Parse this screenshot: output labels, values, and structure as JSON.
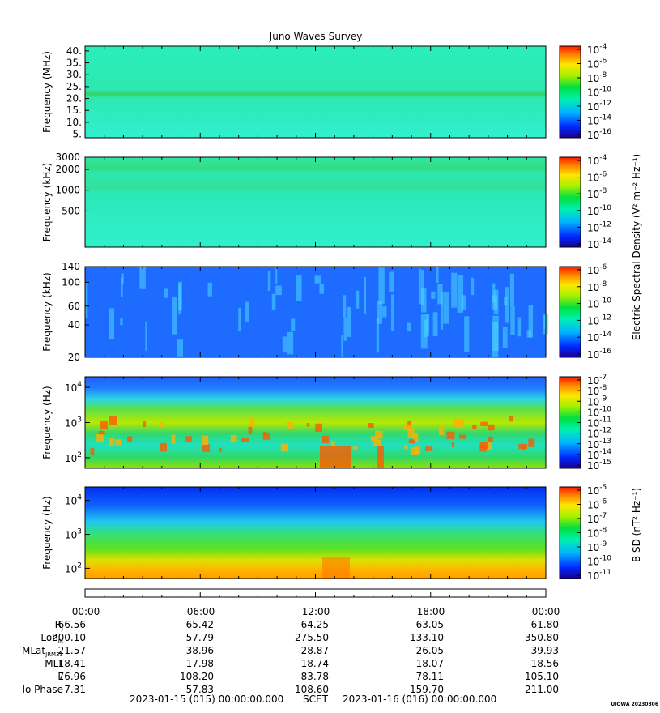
{
  "title": "Juno Waves Survey",
  "colors": {
    "panel_blue": "#1e6cff",
    "panel_cyan": "#28eac8",
    "panel_green": "#2bd46a",
    "panel_yellow": "#ffd000",
    "panel_red": "#ff2a00"
  },
  "chart_data": [
    {
      "type": "heatmap",
      "ylabel": "Frequency (MHz)",
      "yscale": "linear",
      "ylim": [
        3.5,
        42
      ],
      "yticks": [
        "5.",
        "10.",
        "15.",
        "20.",
        "25.",
        "30.",
        "35.",
        "40."
      ],
      "cbar_ticks": [
        "-4",
        "-6",
        "-8",
        "-10",
        "-12",
        "-14",
        "-16"
      ],
      "cbar_label": "",
      "dominant_level": -12.5,
      "features": [
        {
          "freq": 21.5,
          "level": -11.5,
          "desc_band": true
        }
      ]
    },
    {
      "type": "heatmap",
      "ylabel": "Frequency (kHz)",
      "yscale": "log",
      "ylim": [
        150,
        3000
      ],
      "yticks": [
        "3000",
        "2000",
        "1000",
        "500"
      ],
      "cbar_ticks": [
        "-4",
        "-6",
        "-8",
        "-10",
        "-12",
        "-14"
      ],
      "cbar_label": "Electric Spectral Density (V² m⁻² Hz⁻¹)",
      "dominant_level": -12.5,
      "features": [
        {
          "freq": 2000,
          "level": -11.5
        },
        {
          "freq": 1000,
          "level": -11.8
        }
      ]
    },
    {
      "type": "heatmap",
      "ylabel": "Frequency (kHz)",
      "yscale": "log",
      "ylim": [
        20,
        140
      ],
      "yticks": [
        "140",
        "100",
        "60",
        "40",
        "20"
      ],
      "cbar_ticks": [
        "-6",
        "-8",
        "-10",
        "-12",
        "-14",
        "-16"
      ],
      "cbar_label": "",
      "dominant_level": -14.5
    },
    {
      "type": "heatmap",
      "ylabel": "Frequency (Hz)",
      "yscale": "log",
      "ylim": [
        50,
        20000
      ],
      "yticks": [
        "4",
        "3",
        "2"
      ],
      "cbar_ticks": [
        "-7",
        "-8",
        "-9",
        "-10",
        "-11",
        "-12",
        "-13",
        "-14",
        "-15"
      ],
      "cbar_label": "",
      "dominant_level": -11
    },
    {
      "type": "heatmap",
      "ylabel": "Frequency (Hz)",
      "yscale": "log",
      "ylim": [
        50,
        25000
      ],
      "yticks": [
        "4",
        "3",
        "2"
      ],
      "cbar_ticks": [
        "-5",
        "-6",
        "-7",
        "-8",
        "-9",
        "-10",
        "-11"
      ],
      "cbar_label": "B SD (nT² Hz⁻¹)",
      "dominant_level": -8
    }
  ],
  "x_axis": {
    "times": [
      "00:00",
      "06:00",
      "12:00",
      "18:00",
      "00:00"
    ]
  },
  "ephemeris": {
    "labels": [
      "RJ",
      "LonIII",
      "MLatJRM33",
      "MLT",
      "L",
      "Io Phase"
    ],
    "rows": [
      [
        "66.56",
        "65.42",
        "64.25",
        "63.05",
        "61.80"
      ],
      [
        "200.10",
        "57.79",
        "275.50",
        "133.10",
        "350.80"
      ],
      [
        "-21.57",
        "-38.96",
        "-28.87",
        "-26.05",
        "-39.93"
      ],
      [
        "18.41",
        "17.98",
        "18.74",
        "18.07",
        "18.56"
      ],
      [
        "76.96",
        "108.20",
        "83.78",
        "78.11",
        "105.10"
      ],
      [
        "7.31",
        "57.83",
        "108.60",
        "159.70",
        "211.00"
      ]
    ]
  },
  "footer": {
    "start": "2023-01-15 (015) 00:00:00.000",
    "scet": "SCET",
    "end": "2023-01-16 (016) 00:00:00.000"
  },
  "watermark": "UIOWA 20230806"
}
